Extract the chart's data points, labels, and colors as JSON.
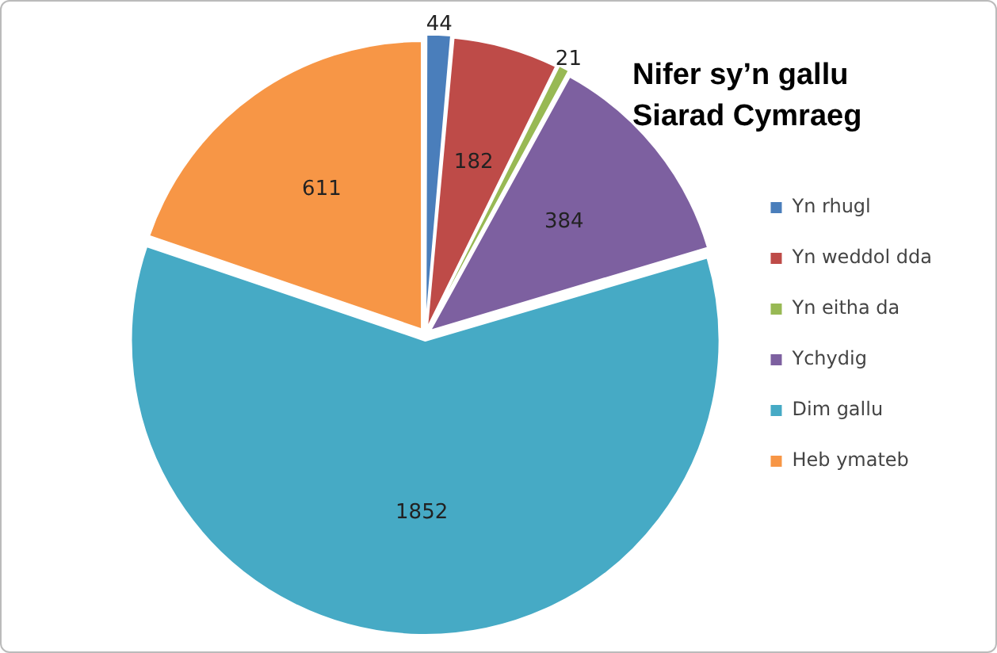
{
  "chart_data": {
    "type": "pie",
    "title": "Nifer sy’n gallu\nSiarad Cymraeg",
    "categories": [
      "Yn rhugl",
      "Yn weddol dda",
      "Yn eitha da",
      "Ychydig",
      "Dim gallu",
      "Heb ymateb"
    ],
    "values": [
      44,
      182,
      21,
      384,
      1852,
      611
    ],
    "colors": [
      "#4a7ebb",
      "#be4b48",
      "#98b954",
      "#7d60a0",
      "#46aac5",
      "#f79646"
    ],
    "data_labels": true,
    "legend": "right"
  }
}
